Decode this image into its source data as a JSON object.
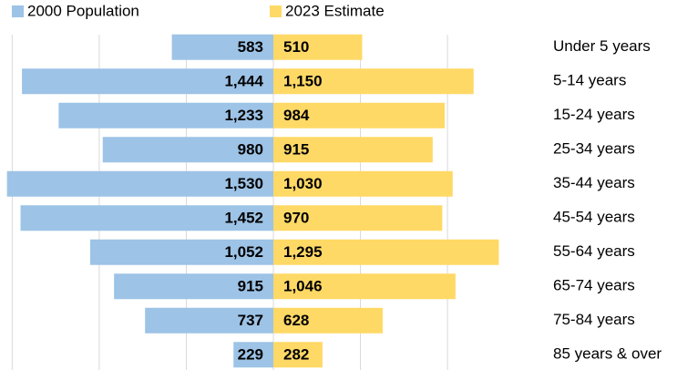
{
  "chart_data": {
    "type": "pyramid",
    "categories": [
      "Under 5 years",
      "5-14 years",
      "15-24 years",
      "25-34 years",
      "35-44 years",
      "45-54 years",
      "55-64 years",
      "65-74 years",
      "75-84 years",
      "85 years & over"
    ],
    "series": [
      {
        "name": "2000 Population",
        "color": "#9dc3e6",
        "side": "left",
        "values": [
          583,
          1444,
          1233,
          980,
          1530,
          1452,
          1052,
          915,
          737,
          229
        ],
        "value_labels": [
          "583",
          "1,444",
          "1,233",
          "980",
          "1,530",
          "1,452",
          "1,052",
          "915",
          "737",
          "229"
        ]
      },
      {
        "name": "2023 Estimate",
        "color": "#ffd966",
        "side": "right",
        "values": [
          510,
          1150,
          984,
          915,
          1030,
          970,
          1295,
          1046,
          628,
          282
        ],
        "value_labels": [
          "510",
          "1,150",
          "984",
          "915",
          "1,030",
          "970",
          "1,295",
          "1,046",
          "628",
          "282"
        ]
      }
    ],
    "xlim": [
      -1570,
      1570
    ],
    "xticks": [
      -1500,
      -1000,
      -500,
      0,
      500,
      1000
    ],
    "grid": true
  }
}
